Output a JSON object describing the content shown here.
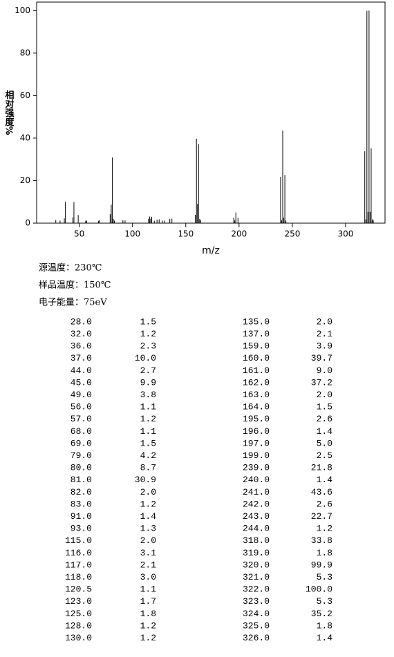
{
  "chart_data": {
    "type": "bar",
    "xlabel": "m/z",
    "ylabel": "相对强度%",
    "xlim": [
      10,
      337
    ],
    "xticks": [
      50,
      100,
      150,
      200,
      250,
      300
    ],
    "ylim": [
      0,
      104
    ],
    "yticks": [
      0,
      20,
      40,
      60,
      80,
      100
    ],
    "color": "#000000",
    "x": [
      28,
      32,
      36,
      37,
      44,
      45,
      49,
      56,
      57,
      68,
      69,
      79,
      80,
      81,
      82,
      83,
      91,
      93,
      115,
      116,
      117,
      118,
      120.5,
      123,
      125,
      128,
      130,
      135,
      137,
      159,
      160,
      161,
      162,
      163,
      164,
      195,
      196,
      197,
      199,
      239,
      240,
      241,
      242,
      243,
      244,
      318,
      319,
      320,
      321,
      322,
      323,
      324,
      325,
      326
    ],
    "x_labels": [
      "28.0",
      "32.0",
      "36.0",
      "37.0",
      "44.0",
      "45.0",
      "49.0",
      "56.0",
      "57.0",
      "68.0",
      "69.0",
      "79.0",
      "80.0",
      "81.0",
      "82.0",
      "83.0",
      "91.0",
      "93.0",
      "115.0",
      "116.0",
      "117.0",
      "118.0",
      "120.5",
      "123.0",
      "125.0",
      "128.0",
      "130.0",
      "135.0",
      "137.0",
      "159.0",
      "160.0",
      "161.0",
      "162.0",
      "163.0",
      "164.0",
      "195.0",
      "196.0",
      "197.0",
      "199.0",
      "239.0",
      "240.0",
      "241.0",
      "242.0",
      "243.0",
      "244.0",
      "318.0",
      "319.0",
      "320.0",
      "321.0",
      "322.0",
      "323.0",
      "324.0",
      "325.0",
      "326.0"
    ],
    "values": [
      1.5,
      1.2,
      2.3,
      10.0,
      2.7,
      9.9,
      3.8,
      1.1,
      1.2,
      1.1,
      1.5,
      4.2,
      8.7,
      30.9,
      2.0,
      1.2,
      1.4,
      1.3,
      2.0,
      3.1,
      2.1,
      3.0,
      1.1,
      1.7,
      1.8,
      1.2,
      1.2,
      2.0,
      2.1,
      3.9,
      39.7,
      9.0,
      37.2,
      2.0,
      1.5,
      2.6,
      1.4,
      5.0,
      2.5,
      21.8,
      1.4,
      43.6,
      2.6,
      22.7,
      1.2,
      33.8,
      1.8,
      99.9,
      5.3,
      100.0,
      5.3,
      35.2,
      1.8,
      1.4
    ],
    "value_labels": [
      "1.5",
      "1.2",
      "2.3",
      "10.0",
      "2.7",
      "9.9",
      "3.8",
      "1.1",
      "1.2",
      "1.1",
      "1.5",
      "4.2",
      "8.7",
      "30.9",
      "2.0",
      "1.2",
      "1.4",
      "1.3",
      "2.0",
      "3.1",
      "2.1",
      "3.0",
      "1.1",
      "1.7",
      "1.8",
      "1.2",
      "1.2",
      "2.0",
      "2.1",
      "3.9",
      "39.7",
      "9.0",
      "37.2",
      "2.0",
      "1.5",
      "2.6",
      "1.4",
      "5.0",
      "2.5",
      "21.8",
      "1.4",
      "43.6",
      "2.6",
      "22.7",
      "1.2",
      "33.8",
      "1.8",
      "99.9",
      "5.3",
      "100.0",
      "5.3",
      "35.2",
      "1.8",
      "1.4"
    ]
  },
  "conditions": [
    "源温度：230℃",
    "样品温度：150℃",
    "电子能量：75eV"
  ]
}
